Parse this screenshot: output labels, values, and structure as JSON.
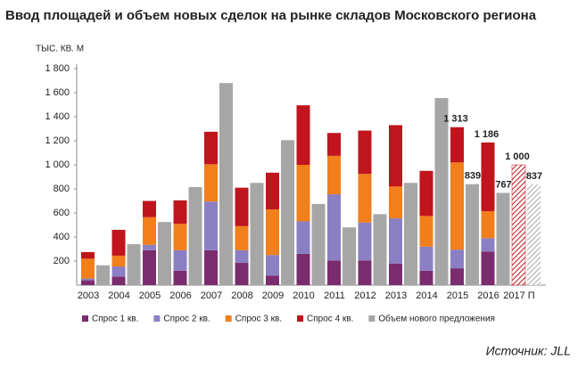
{
  "chart_data": {
    "type": "bar",
    "title": "Ввод площадей и объем новых сделок на рынке складов Московского региона",
    "y_label": "ТЫС. КВ. М",
    "source": "Источник: JLL",
    "categories": [
      "2003",
      "2004",
      "2005",
      "2006",
      "2007",
      "2008",
      "2009",
      "2010",
      "2011",
      "2012",
      "2013",
      "2014",
      "2015",
      "2016",
      "2017 П"
    ],
    "series": [
      {
        "name": "Спрос 1 кв.",
        "color": "#7b2c6e",
        "stack": "demand",
        "values": [
          40,
          70,
          290,
          120,
          290,
          185,
          80,
          260,
          205,
          205,
          180,
          120,
          140,
          280,
          null
        ]
      },
      {
        "name": "Спрос 2 кв.",
        "color": "#8b7fc4",
        "stack": "demand",
        "values": [
          15,
          85,
          45,
          170,
          405,
          105,
          170,
          270,
          550,
          315,
          375,
          200,
          155,
          110,
          null
        ]
      },
      {
        "name": "Спрос 3 кв.",
        "color": "#f07f1c",
        "stack": "demand",
        "values": [
          165,
          90,
          230,
          220,
          310,
          200,
          380,
          470,
          320,
          405,
          265,
          255,
          725,
          225,
          null
        ]
      },
      {
        "name": "Спрос 4 кв.",
        "color": "#c0151c",
        "stack": "demand",
        "values": [
          55,
          215,
          135,
          195,
          270,
          320,
          305,
          495,
          190,
          360,
          510,
          375,
          293,
          571,
          null
        ]
      },
      {
        "name": "Объем нового предложения",
        "color": "#a6a6a6",
        "stack": "supply",
        "values": [
          165,
          340,
          525,
          815,
          1680,
          850,
          1205,
          675,
          480,
          590,
          850,
          1555,
          839,
          767,
          837
        ]
      }
    ],
    "forecast_category": "2017 П",
    "forecast_demand": 1000,
    "forecast_demand_color": "#c0151c",
    "annotations": [
      {
        "x": "2015",
        "value": 1313,
        "label": "1 313"
      },
      {
        "x": "2015",
        "value": 839
      },
      {
        "x": "2016",
        "value": 1186,
        "label": "1 186"
      },
      {
        "x": "2016",
        "value": 767
      },
      {
        "x": "2017 П",
        "value": 1000,
        "label": "1 000"
      },
      {
        "x": "2017 П",
        "value": 837
      }
    ],
    "ylim": [
      0,
      1800
    ],
    "yticks": [
      200,
      400,
      600,
      800,
      {
        "value": 1000,
        "label": "1 000"
      },
      {
        "value": 1200,
        "label": "1 200"
      },
      {
        "value": 1400,
        "label": "1 400"
      },
      {
        "value": 1600,
        "label": "1 600"
      },
      {
        "value": 1800,
        "label": "1 800"
      }
    ],
    "grid": false
  }
}
